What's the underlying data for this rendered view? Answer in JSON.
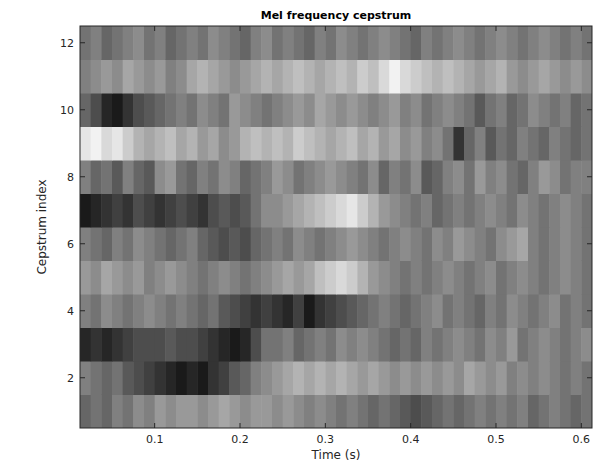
{
  "chart_data": {
    "type": "heatmap",
    "title": "Mel frequency cepstrum",
    "x_label": "Time (s)",
    "y_label": "Cepstrum index",
    "xlim": [
      0.0125,
      0.6125
    ],
    "ylim": [
      0.5,
      12.5
    ],
    "xticks": [
      0.1,
      0.2,
      0.3,
      0.4,
      0.5,
      0.6
    ],
    "yticks": [
      2,
      4,
      6,
      8,
      10,
      12
    ],
    "clim": [
      0,
      1
    ],
    "x": [
      0.01875,
      0.03125,
      0.04375,
      0.05625,
      0.06875,
      0.08125,
      0.09375,
      0.10625,
      0.11875,
      0.13125,
      0.14375,
      0.15625,
      0.16875,
      0.18125,
      0.19375,
      0.20625,
      0.21875,
      0.23125,
      0.24375,
      0.25625,
      0.26875,
      0.28125,
      0.29375,
      0.30625,
      0.31875,
      0.33125,
      0.34375,
      0.35625,
      0.36875,
      0.38125,
      0.39375,
      0.40625,
      0.41875,
      0.43125,
      0.44375,
      0.45625,
      0.46875,
      0.48125,
      0.49375,
      0.50625,
      0.51875,
      0.53125,
      0.54375,
      0.55625,
      0.56875,
      0.58125,
      0.59375,
      0.60625
    ],
    "y": [
      1,
      2,
      3,
      4,
      5,
      6,
      7,
      8,
      9,
      10,
      11,
      12
    ],
    "cells": [
      [
        0.4,
        0.45,
        0.4,
        0.5,
        0.45,
        0.55,
        0.5,
        0.6,
        0.55,
        0.6,
        0.6,
        0.55,
        0.6,
        0.65,
        0.6,
        0.55,
        0.6,
        0.6,
        0.55,
        0.6,
        0.55,
        0.5,
        0.55,
        0.5,
        0.45,
        0.5,
        0.45,
        0.4,
        0.45,
        0.4,
        0.35,
        0.3,
        0.35,
        0.4,
        0.45,
        0.4,
        0.45,
        0.5,
        0.45,
        0.5,
        0.45,
        0.5,
        0.4,
        0.45,
        0.5,
        0.45,
        0.4,
        0.45
      ],
      [
        0.5,
        0.45,
        0.4,
        0.45,
        0.35,
        0.3,
        0.25,
        0.2,
        0.15,
        0.1,
        0.15,
        0.1,
        0.2,
        0.25,
        0.35,
        0.4,
        0.5,
        0.55,
        0.6,
        0.65,
        0.7,
        0.65,
        0.7,
        0.65,
        0.7,
        0.65,
        0.6,
        0.65,
        0.6,
        0.55,
        0.6,
        0.55,
        0.6,
        0.55,
        0.6,
        0.55,
        0.65,
        0.6,
        0.55,
        0.6,
        0.5,
        0.55,
        0.5,
        0.55,
        0.5,
        0.45,
        0.5,
        0.45
      ],
      [
        0.15,
        0.2,
        0.15,
        0.2,
        0.25,
        0.3,
        0.3,
        0.3,
        0.35,
        0.3,
        0.3,
        0.25,
        0.2,
        0.15,
        0.1,
        0.15,
        0.3,
        0.45,
        0.45,
        0.5,
        0.4,
        0.45,
        0.5,
        0.45,
        0.55,
        0.5,
        0.55,
        0.5,
        0.45,
        0.4,
        0.45,
        0.4,
        0.5,
        0.45,
        0.5,
        0.55,
        0.5,
        0.45,
        0.55,
        0.5,
        0.6,
        0.45,
        0.5,
        0.55,
        0.5,
        0.45,
        0.5,
        0.55
      ],
      [
        0.5,
        0.45,
        0.55,
        0.5,
        0.45,
        0.5,
        0.55,
        0.5,
        0.45,
        0.5,
        0.45,
        0.4,
        0.45,
        0.35,
        0.3,
        0.25,
        0.2,
        0.25,
        0.2,
        0.15,
        0.25,
        0.1,
        0.2,
        0.25,
        0.3,
        0.35,
        0.4,
        0.45,
        0.5,
        0.45,
        0.4,
        0.45,
        0.5,
        0.55,
        0.45,
        0.5,
        0.45,
        0.4,
        0.5,
        0.45,
        0.55,
        0.5,
        0.45,
        0.5,
        0.55,
        0.45,
        0.5,
        0.45
      ],
      [
        0.6,
        0.55,
        0.65,
        0.6,
        0.55,
        0.6,
        0.5,
        0.55,
        0.6,
        0.55,
        0.5,
        0.45,
        0.5,
        0.55,
        0.5,
        0.45,
        0.5,
        0.55,
        0.6,
        0.65,
        0.6,
        0.65,
        0.75,
        0.8,
        0.85,
        0.8,
        0.7,
        0.6,
        0.55,
        0.5,
        0.45,
        0.5,
        0.45,
        0.5,
        0.55,
        0.5,
        0.45,
        0.5,
        0.55,
        0.45,
        0.5,
        0.55,
        0.5,
        0.45,
        0.5,
        0.55,
        0.5,
        0.45
      ],
      [
        0.5,
        0.45,
        0.4,
        0.5,
        0.45,
        0.55,
        0.5,
        0.45,
        0.4,
        0.45,
        0.5,
        0.4,
        0.35,
        0.3,
        0.35,
        0.3,
        0.4,
        0.45,
        0.5,
        0.45,
        0.55,
        0.5,
        0.45,
        0.5,
        0.55,
        0.6,
        0.55,
        0.5,
        0.45,
        0.5,
        0.55,
        0.5,
        0.45,
        0.55,
        0.5,
        0.6,
        0.55,
        0.5,
        0.45,
        0.55,
        0.6,
        0.65,
        0.5,
        0.45,
        0.5,
        0.55,
        0.5,
        0.45
      ],
      [
        0.1,
        0.15,
        0.2,
        0.25,
        0.2,
        0.3,
        0.25,
        0.2,
        0.25,
        0.3,
        0.25,
        0.2,
        0.3,
        0.35,
        0.3,
        0.35,
        0.45,
        0.55,
        0.55,
        0.6,
        0.65,
        0.7,
        0.75,
        0.8,
        0.85,
        0.9,
        0.8,
        0.7,
        0.6,
        0.55,
        0.5,
        0.45,
        0.5,
        0.4,
        0.45,
        0.5,
        0.45,
        0.5,
        0.55,
        0.5,
        0.45,
        0.55,
        0.5,
        0.45,
        0.5,
        0.55,
        0.5,
        0.45
      ],
      [
        0.5,
        0.4,
        0.45,
        0.35,
        0.5,
        0.4,
        0.35,
        0.55,
        0.6,
        0.45,
        0.4,
        0.5,
        0.45,
        0.55,
        0.5,
        0.4,
        0.45,
        0.5,
        0.6,
        0.55,
        0.45,
        0.5,
        0.55,
        0.6,
        0.55,
        0.5,
        0.45,
        0.55,
        0.4,
        0.5,
        0.45,
        0.55,
        0.35,
        0.4,
        0.5,
        0.55,
        0.45,
        0.6,
        0.5,
        0.55,
        0.45,
        0.4,
        0.5,
        0.6,
        0.55,
        0.45,
        0.5,
        0.5
      ],
      [
        0.9,
        0.95,
        0.85,
        0.9,
        0.8,
        0.7,
        0.65,
        0.7,
        0.75,
        0.65,
        0.7,
        0.6,
        0.65,
        0.55,
        0.6,
        0.7,
        0.75,
        0.7,
        0.75,
        0.7,
        0.8,
        0.75,
        0.7,
        0.65,
        0.7,
        0.75,
        0.65,
        0.7,
        0.6,
        0.65,
        0.55,
        0.6,
        0.5,
        0.55,
        0.45,
        0.2,
        0.4,
        0.5,
        0.35,
        0.45,
        0.4,
        0.5,
        0.45,
        0.4,
        0.5,
        0.45,
        0.4,
        0.45
      ],
      [
        0.4,
        0.3,
        0.15,
        0.1,
        0.2,
        0.3,
        0.35,
        0.4,
        0.45,
        0.5,
        0.45,
        0.55,
        0.5,
        0.45,
        0.6,
        0.55,
        0.5,
        0.45,
        0.5,
        0.55,
        0.6,
        0.55,
        0.65,
        0.6,
        0.55,
        0.6,
        0.55,
        0.5,
        0.55,
        0.6,
        0.5,
        0.55,
        0.45,
        0.5,
        0.55,
        0.5,
        0.45,
        0.35,
        0.45,
        0.5,
        0.4,
        0.45,
        0.55,
        0.5,
        0.45,
        0.5,
        0.4,
        0.45
      ],
      [
        0.5,
        0.55,
        0.6,
        0.55,
        0.65,
        0.6,
        0.55,
        0.6,
        0.5,
        0.55,
        0.65,
        0.7,
        0.65,
        0.6,
        0.55,
        0.6,
        0.65,
        0.7,
        0.65,
        0.7,
        0.75,
        0.7,
        0.65,
        0.7,
        0.75,
        0.7,
        0.8,
        0.75,
        0.85,
        0.95,
        0.85,
        0.8,
        0.75,
        0.7,
        0.75,
        0.7,
        0.65,
        0.6,
        0.65,
        0.7,
        0.6,
        0.55,
        0.6,
        0.65,
        0.6,
        0.55,
        0.6,
        0.55
      ],
      [
        0.45,
        0.5,
        0.4,
        0.45,
        0.5,
        0.55,
        0.45,
        0.5,
        0.4,
        0.45,
        0.5,
        0.45,
        0.55,
        0.5,
        0.45,
        0.4,
        0.5,
        0.55,
        0.45,
        0.5,
        0.45,
        0.4,
        0.5,
        0.45,
        0.55,
        0.5,
        0.45,
        0.5,
        0.55,
        0.5,
        0.45,
        0.4,
        0.5,
        0.45,
        0.5,
        0.55,
        0.5,
        0.45,
        0.5,
        0.55,
        0.5,
        0.45,
        0.5,
        0.55,
        0.5,
        0.45,
        0.5,
        0.45
      ]
    ]
  }
}
